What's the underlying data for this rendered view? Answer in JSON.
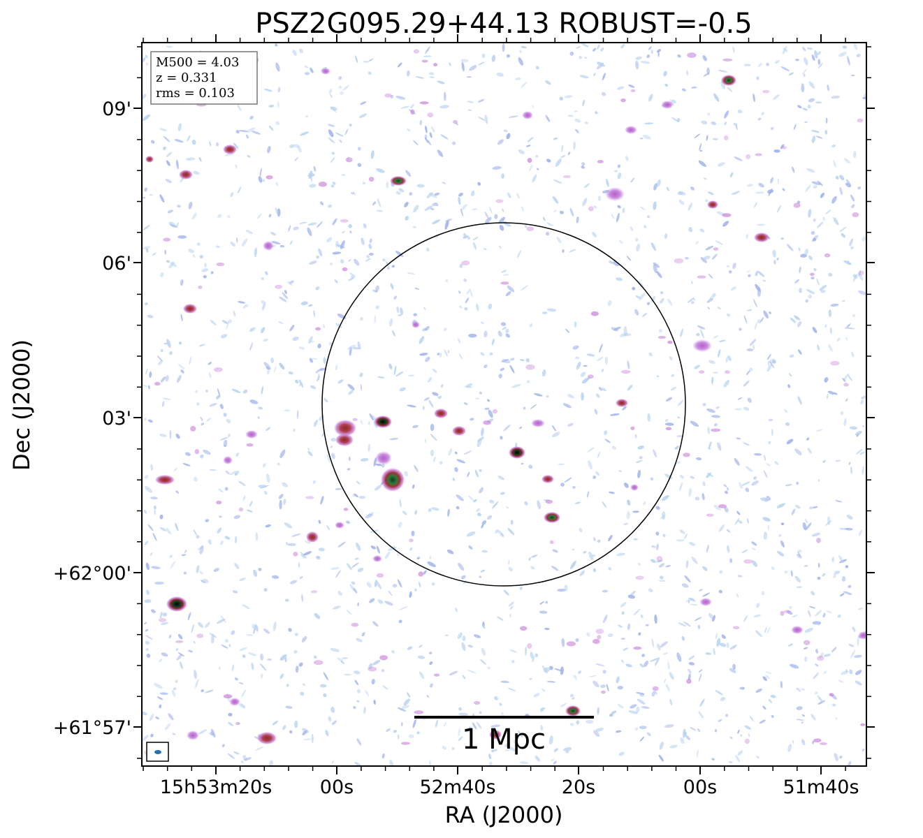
{
  "figure": {
    "title": "PSZ2G095.29+44.13 ROBUST=-0.5",
    "xlabel": "RA (J2000)",
    "ylabel": "Dec (J2000)",
    "x_ticks": [
      "15h53m20s",
      "00s",
      "52m40s",
      "20s",
      "00s",
      "51m40s"
    ],
    "y_ticks": [
      "09'",
      "06'",
      "03'",
      "+62°00'",
      "+61°57'"
    ],
    "info": {
      "line1": "M500 = 4.03",
      "line2": "z = 0.331",
      "line3": "rms = 0.103"
    },
    "scalebar_label": "1 Mpc",
    "colors": {
      "noise_light": "#b9d3f0",
      "noise_mid": "#9fb3ea",
      "source_pink": "#c77fd8",
      "source_red": "#a0303a",
      "source_green": "#1f6b2e",
      "source_core": "#000000",
      "beam": "#2a6fb0"
    }
  }
}
